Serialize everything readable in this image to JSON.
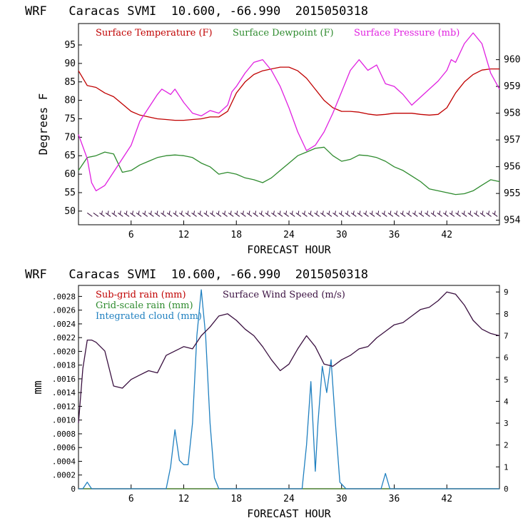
{
  "chart_data": [
    {
      "type": "line",
      "header": "WRF   Caracas SVMI  10.600, -66.990  2015050318",
      "xlabel": "FORECAST HOUR",
      "ylabel": "Degrees F",
      "xlim": [
        0,
        48
      ],
      "ylim": [
        46.3,
        100.8
      ],
      "y2lim": [
        953.83,
        961.35
      ],
      "xticks": [
        "6",
        "12",
        "18",
        "24",
        "30",
        "36",
        "42"
      ],
      "yticks": [
        "50",
        "55",
        "60",
        "65",
        "70",
        "75",
        "80",
        "85",
        "90",
        "95"
      ],
      "y2ticks": [
        "954",
        "955",
        "956",
        "957",
        "958",
        "959",
        "960"
      ],
      "series": [
        {
          "name": "Surface Temperature (F)",
          "color": "#c00000",
          "axis": "left",
          "x": [
            0,
            1,
            2,
            3,
            4,
            5,
            6,
            7,
            8,
            9,
            10,
            11,
            12,
            13,
            14,
            15,
            16,
            17,
            18,
            19,
            20,
            21,
            22,
            23,
            24,
            25,
            26,
            27,
            28,
            29,
            30,
            31,
            32,
            33,
            34,
            35,
            36,
            37,
            38,
            39,
            40,
            41,
            42,
            43,
            44,
            45,
            46,
            47,
            48
          ],
          "y": [
            88,
            84,
            83.5,
            82,
            81,
            79,
            77,
            76,
            75.5,
            75,
            74.8,
            74.6,
            74.6,
            74.8,
            75,
            75.5,
            75.5,
            77,
            82,
            85,
            87,
            88,
            88.5,
            89,
            89,
            88,
            86,
            83,
            80,
            78,
            77,
            77,
            76.8,
            76.3,
            76,
            76.2,
            76.5,
            76.5,
            76.5,
            76.2,
            76,
            76.2,
            78,
            82,
            85,
            87,
            88.2,
            88.5,
            88.5
          ]
        },
        {
          "name": "Surface Dewpoint (F)",
          "color": "#2e8b2e",
          "axis": "left",
          "x": [
            0,
            1,
            2,
            3,
            4,
            5,
            6,
            7,
            8,
            9,
            10,
            11,
            12,
            13,
            14,
            15,
            16,
            17,
            18,
            19,
            20,
            21,
            22,
            23,
            24,
            25,
            26,
            27,
            28,
            29,
            30,
            31,
            32,
            33,
            34,
            35,
            36,
            37,
            38,
            39,
            40,
            41,
            42,
            43,
            44,
            45,
            46,
            47,
            48
          ],
          "y": [
            61,
            64.5,
            65,
            66,
            65.5,
            60.5,
            61,
            62.5,
            63.5,
            64.5,
            65,
            65.2,
            65,
            64.5,
            63,
            62,
            60,
            60.5,
            60,
            59,
            58.5,
            57.7,
            59,
            61,
            63,
            65,
            66,
            67,
            67.3,
            65,
            63.5,
            64,
            65.2,
            65,
            64.5,
            63.5,
            62,
            61,
            59.5,
            58,
            56,
            55.5,
            55,
            54.5,
            54.7,
            55.5,
            57,
            58.5,
            58
          ]
        },
        {
          "name": "Surface Pressure (mb)",
          "color": "#e020e0",
          "axis": "right",
          "x": [
            0,
            1,
            1.5,
            2,
            3,
            4,
            5,
            6,
            7,
            8,
            9,
            9.5,
            10,
            10.5,
            11,
            12,
            13,
            14,
            15,
            16,
            17,
            17.5,
            18,
            19,
            20,
            21,
            22,
            23,
            24,
            25,
            26,
            27,
            28,
            29,
            30,
            31,
            32,
            33,
            34,
            35,
            36,
            37,
            38,
            39,
            40,
            41,
            42,
            42.5,
            43,
            44,
            45,
            46,
            47,
            48
          ],
          "y": [
            957.2,
            956.3,
            955.4,
            955.1,
            955.3,
            955.8,
            956.3,
            956.8,
            957.7,
            958.2,
            958.7,
            958.9,
            958.8,
            958.7,
            958.9,
            958.4,
            958.0,
            957.9,
            958.1,
            958.0,
            958.3,
            958.8,
            959.0,
            959.5,
            959.9,
            960.0,
            959.6,
            959.0,
            958.2,
            957.3,
            956.6,
            956.8,
            957.3,
            958.0,
            958.8,
            959.6,
            960.0,
            959.6,
            959.8,
            959.1,
            959.0,
            958.7,
            958.3,
            958.6,
            958.9,
            959.2,
            959.6,
            960.0,
            959.9,
            960.6,
            961.0,
            960.6,
            959.5,
            958.9
          ]
        },
        {
          "name": "wind barbs",
          "color": "#3a1040",
          "axis": "left",
          "y_level": 49.5
        }
      ],
      "legend": [
        "Surface Temperature (F)",
        "Surface Dewpoint (F)",
        "Surface Pressure (mb)"
      ]
    },
    {
      "type": "line",
      "header": "WRF   Caracas SVMI  10.600, -66.990  2015050318",
      "xlabel": "FORECAST HOUR",
      "ylabel": "mm",
      "xlim": [
        0,
        48
      ],
      "ylim": [
        0,
        0.00296
      ],
      "y2lim": [
        0,
        9.3
      ],
      "xticks": [
        "6",
        "12",
        "18",
        "24",
        "30",
        "36",
        "42"
      ],
      "yticks": [
        "0",
        ".0002",
        ".0004",
        ".0006",
        ".0008",
        ".0010",
        ".0012",
        ".0014",
        ".0016",
        ".0018",
        ".0020",
        ".0022",
        ".0024",
        ".0026",
        ".0028"
      ],
      "y2ticks": [
        "0",
        "1",
        "2",
        "3",
        "4",
        "5",
        "6",
        "7",
        "8",
        "9"
      ],
      "series": [
        {
          "name": "Sub-grid rain (mm)",
          "color": "#c00000",
          "axis": "left",
          "x": [
            0,
            48
          ],
          "y": [
            0,
            0
          ]
        },
        {
          "name": "Grid-scale rain (mm)",
          "color": "#2e8b2e",
          "axis": "left",
          "x": [
            0,
            48
          ],
          "y": [
            0.0,
            0.0
          ]
        },
        {
          "name": "Integrated cloud (mm)",
          "color": "#2080c0",
          "axis": "right",
          "x": [
            0,
            0.5,
            1,
            1.5,
            2,
            9,
            10,
            10.5,
            11,
            11.5,
            12,
            12.5,
            13,
            13.5,
            14,
            14.5,
            15,
            15.5,
            16,
            25.5,
            26,
            26.5,
            27,
            27.3,
            27.8,
            28.3,
            28.8,
            29.3,
            29.8,
            30.5,
            34.5,
            35,
            35.5,
            48
          ],
          "y": [
            0,
            0,
            0.3,
            0,
            0,
            0,
            0,
            1,
            2.7,
            1.3,
            1.1,
            1.1,
            3,
            7,
            9.1,
            7,
            3,
            0.5,
            0,
            0,
            2,
            4.9,
            0.8,
            3,
            5.6,
            4.4,
            5.9,
            3,
            0.3,
            0,
            0,
            0.7,
            0,
            0
          ]
        },
        {
          "name": "Surface Wind Speed (m/s)",
          "color": "#3a1040",
          "axis": "right",
          "x": [
            0,
            0.5,
            1,
            1.5,
            2,
            3,
            4,
            5,
            6,
            7,
            8,
            9,
            10,
            11,
            12,
            13,
            14,
            15,
            16,
            17,
            18,
            19,
            20,
            21,
            22,
            23,
            24,
            25,
            26,
            27,
            28,
            29,
            30,
            31,
            32,
            33,
            34,
            35,
            36,
            37,
            38,
            39,
            40,
            41,
            42,
            43,
            44,
            45,
            46,
            47,
            48
          ],
          "y": [
            3,
            5.5,
            6.8,
            6.8,
            6.7,
            6.3,
            4.7,
            4.6,
            5,
            5.2,
            5.4,
            5.3,
            6.1,
            6.3,
            6.5,
            6.4,
            7,
            7.4,
            7.9,
            8.0,
            7.7,
            7.3,
            7.0,
            6.5,
            5.9,
            5.4,
            5.7,
            6.4,
            7.0,
            6.5,
            5.7,
            5.6,
            5.9,
            6.1,
            6.4,
            6.5,
            6.9,
            7.2,
            7.5,
            7.6,
            7.9,
            8.2,
            8.3,
            8.6,
            9.0,
            8.9,
            8.4,
            7.7,
            7.3,
            7.1,
            7.0
          ]
        }
      ],
      "legend": [
        "Sub-grid rain (mm)",
        "Surface Wind Speed (m/s)",
        "Grid-scale rain (mm)",
        "Integrated cloud (mm)"
      ]
    }
  ]
}
